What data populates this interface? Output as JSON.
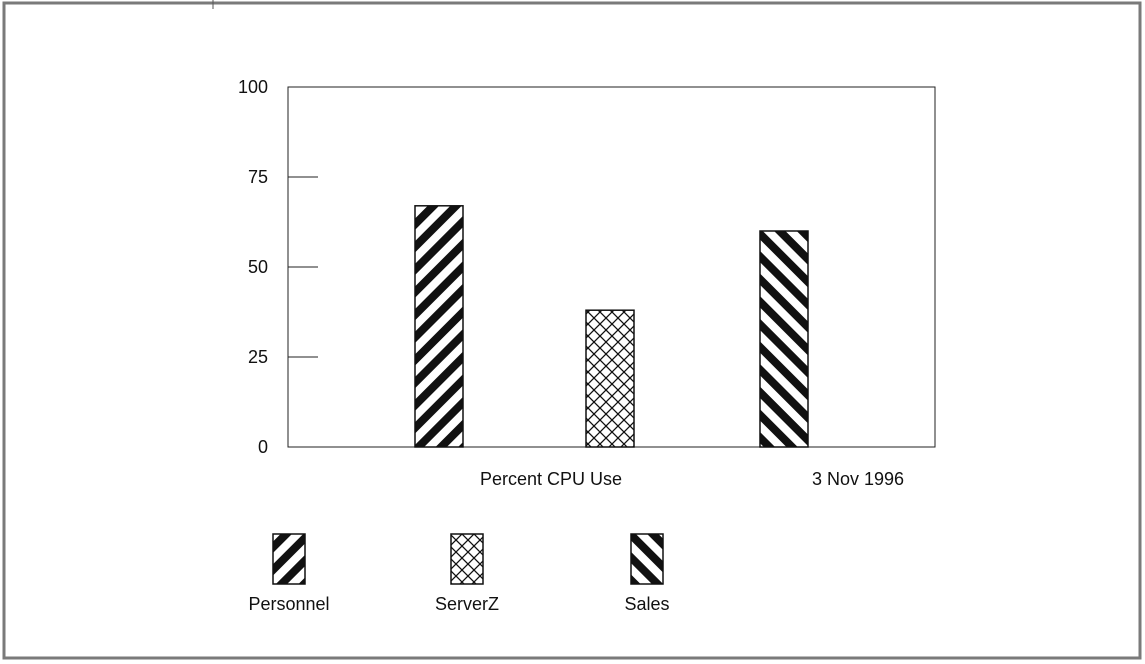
{
  "chart_data": {
    "type": "bar",
    "categories": [
      "Personnel",
      "ServerZ",
      "Sales"
    ],
    "values": [
      67,
      38,
      60
    ],
    "patterns": [
      "diagonal-down",
      "crosshatch",
      "diagonal-up"
    ],
    "xlabel": "Percent CPU Use",
    "annotation": "3 Nov 1996",
    "ylim": [
      0,
      100
    ],
    "yticks": [
      0,
      25,
      50,
      75,
      100
    ],
    "grid": false,
    "legend_position": "bottom",
    "legend": [
      "Personnel",
      "ServerZ",
      "Sales"
    ]
  }
}
